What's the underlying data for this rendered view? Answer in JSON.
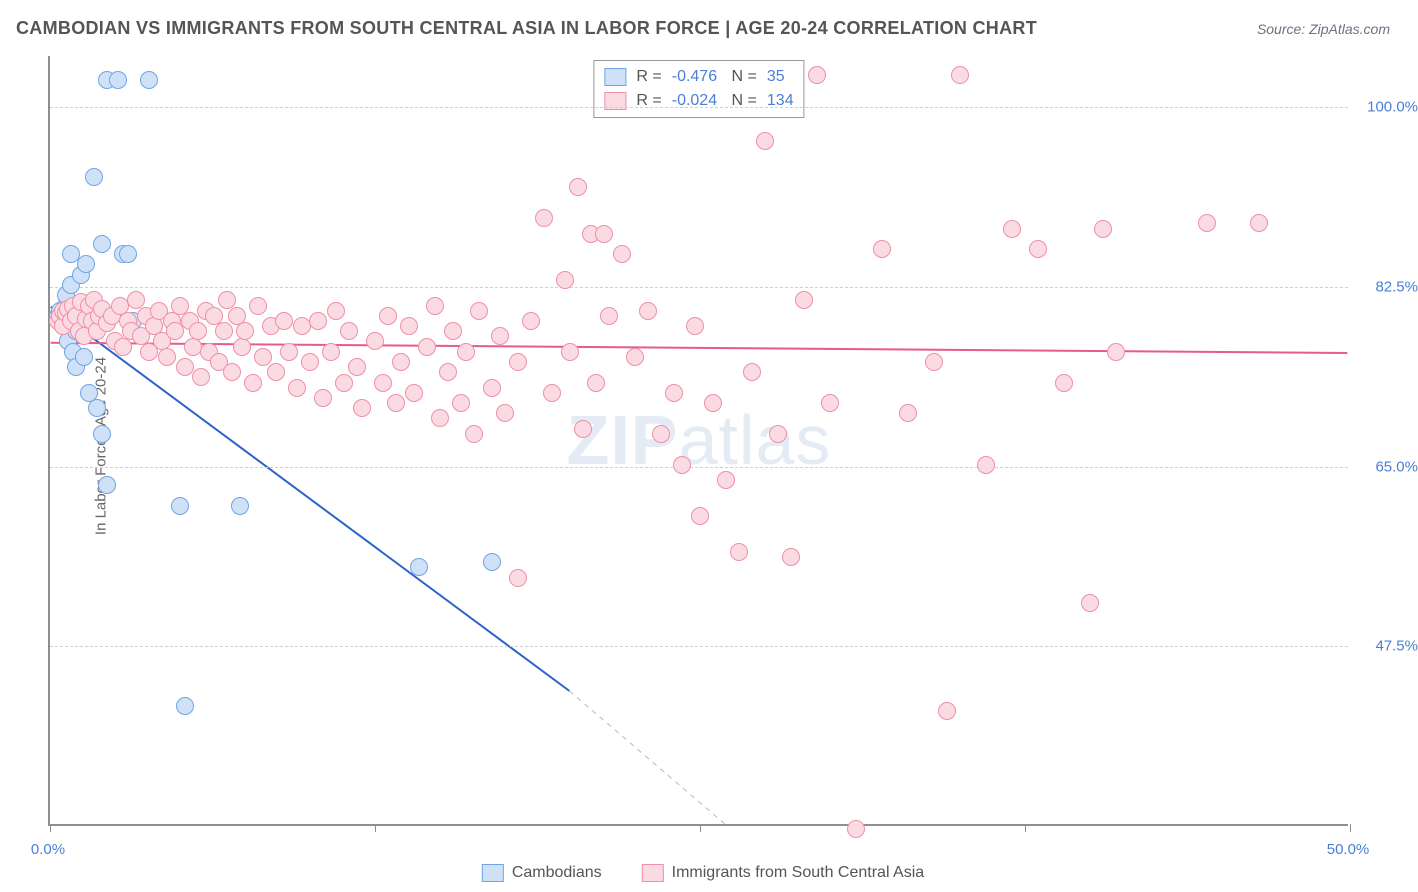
{
  "title": "CAMBODIAN VS IMMIGRANTS FROM SOUTH CENTRAL ASIA IN LABOR FORCE | AGE 20-24 CORRELATION CHART",
  "source_label": "Source: ZipAtlas.com",
  "y_axis_label": "In Labor Force | Age 20-24",
  "watermark_a": "ZIP",
  "watermark_b": "atlas",
  "chart": {
    "type": "scatter",
    "background_color": "#ffffff",
    "grid_color": "#d0d0d0",
    "axis_color": "#8f8f8f",
    "tick_label_color": "#4a7fd6",
    "xlim": [
      0,
      50
    ],
    "ylim": [
      30,
      105
    ],
    "x_ticks": [
      0,
      12.5,
      25,
      37.5,
      50
    ],
    "x_tick_labels": [
      "0.0%",
      "",
      "",
      "",
      "50.0%"
    ],
    "y_grid": [
      47.5,
      65.0,
      82.5,
      100.0
    ],
    "y_tick_labels": [
      "47.5%",
      "65.0%",
      "82.5%",
      "100.0%"
    ],
    "marker_radius": 9,
    "marker_stroke_width": 1.5,
    "series": [
      {
        "name": "Cambodians",
        "fill": "#cfe1f7",
        "stroke": "#6fa5e6",
        "r_value": "-0.476",
        "n_value": "35",
        "trend": {
          "x1": 0,
          "y1": 80.5,
          "x2_solid": 20,
          "y2_solid": 43,
          "x2": 26,
          "y2": 30,
          "color": "#2b63c9",
          "width": 2
        },
        "points": [
          [
            0.3,
            79.5
          ],
          [
            0.4,
            80
          ],
          [
            0.5,
            79
          ],
          [
            0.5,
            78.5
          ],
          [
            0.6,
            80.5
          ],
          [
            0.6,
            81.5
          ],
          [
            0.7,
            77
          ],
          [
            0.8,
            82.5
          ],
          [
            0.8,
            85.5
          ],
          [
            0.9,
            76
          ],
          [
            1.0,
            74.5
          ],
          [
            1.0,
            78
          ],
          [
            1.2,
            83.5
          ],
          [
            1.2,
            80
          ],
          [
            1.3,
            75.5
          ],
          [
            1.4,
            84.5
          ],
          [
            1.5,
            72
          ],
          [
            1.6,
            80
          ],
          [
            1.7,
            93
          ],
          [
            1.8,
            70.5
          ],
          [
            2.0,
            68
          ],
          [
            2.0,
            86.5
          ],
          [
            2.2,
            63
          ],
          [
            2.2,
            102.5
          ],
          [
            2.6,
            102.5
          ],
          [
            2.8,
            85.5
          ],
          [
            3.0,
            85.5
          ],
          [
            3.2,
            79
          ],
          [
            3.8,
            102.5
          ],
          [
            4.0,
            78.5
          ],
          [
            5.0,
            61
          ],
          [
            5.2,
            41.5
          ],
          [
            7.3,
            61
          ],
          [
            14.2,
            55
          ],
          [
            17.0,
            55.5
          ]
        ]
      },
      {
        "name": "Immigrants from South Central Asia",
        "fill": "#fbdbe3",
        "stroke": "#ef8fa8",
        "r_value": "-0.024",
        "n_value": "134",
        "trend": {
          "x1": 0,
          "y1": 77.0,
          "x2_solid": 50,
          "y2_solid": 76.0,
          "x2": 50,
          "y2": 76.0,
          "color": "#e65a8c",
          "width": 2
        },
        "points": [
          [
            0.3,
            79
          ],
          [
            0.4,
            79.5
          ],
          [
            0.5,
            80
          ],
          [
            0.5,
            78.5
          ],
          [
            0.6,
            79.8
          ],
          [
            0.7,
            80.2
          ],
          [
            0.8,
            79
          ],
          [
            0.9,
            80.5
          ],
          [
            1.0,
            79.5
          ],
          [
            1.1,
            78
          ],
          [
            1.2,
            80.8
          ],
          [
            1.3,
            77.5
          ],
          [
            1.4,
            79.2
          ],
          [
            1.5,
            80.5
          ],
          [
            1.6,
            79
          ],
          [
            1.7,
            81
          ],
          [
            1.8,
            78
          ],
          [
            1.9,
            79.5
          ],
          [
            2.0,
            80.2
          ],
          [
            2.2,
            78.8
          ],
          [
            2.4,
            79.5
          ],
          [
            2.5,
            77
          ],
          [
            2.7,
            80.5
          ],
          [
            2.8,
            76.5
          ],
          [
            3.0,
            79
          ],
          [
            3.1,
            78
          ],
          [
            3.3,
            81
          ],
          [
            3.5,
            77.5
          ],
          [
            3.7,
            79.5
          ],
          [
            3.8,
            76
          ],
          [
            4.0,
            78.5
          ],
          [
            4.2,
            80
          ],
          [
            4.3,
            77
          ],
          [
            4.5,
            75.5
          ],
          [
            4.7,
            79
          ],
          [
            4.8,
            78
          ],
          [
            5.0,
            80.5
          ],
          [
            5.2,
            74.5
          ],
          [
            5.4,
            79
          ],
          [
            5.5,
            76.5
          ],
          [
            5.7,
            78
          ],
          [
            5.8,
            73.5
          ],
          [
            6.0,
            80
          ],
          [
            6.1,
            76
          ],
          [
            6.3,
            79.5
          ],
          [
            6.5,
            75
          ],
          [
            6.7,
            78
          ],
          [
            6.8,
            81
          ],
          [
            7.0,
            74
          ],
          [
            7.2,
            79.5
          ],
          [
            7.4,
            76.5
          ],
          [
            7.5,
            78
          ],
          [
            7.8,
            73
          ],
          [
            8.0,
            80.5
          ],
          [
            8.2,
            75.5
          ],
          [
            8.5,
            78.5
          ],
          [
            8.7,
            74
          ],
          [
            9.0,
            79
          ],
          [
            9.2,
            76
          ],
          [
            9.5,
            72.5
          ],
          [
            9.7,
            78.5
          ],
          [
            10.0,
            75
          ],
          [
            10.3,
            79
          ],
          [
            10.5,
            71.5
          ],
          [
            10.8,
            76
          ],
          [
            11.0,
            80
          ],
          [
            11.3,
            73
          ],
          [
            11.5,
            78
          ],
          [
            11.8,
            74.5
          ],
          [
            12.0,
            70.5
          ],
          [
            12.5,
            77
          ],
          [
            12.8,
            73
          ],
          [
            13.0,
            79.5
          ],
          [
            13.3,
            71
          ],
          [
            13.5,
            75
          ],
          [
            13.8,
            78.5
          ],
          [
            14.0,
            72
          ],
          [
            14.5,
            76.5
          ],
          [
            14.8,
            80.5
          ],
          [
            15.0,
            69.5
          ],
          [
            15.3,
            74
          ],
          [
            15.5,
            78
          ],
          [
            15.8,
            71
          ],
          [
            16.0,
            76
          ],
          [
            16.3,
            68
          ],
          [
            16.5,
            80
          ],
          [
            17.0,
            72.5
          ],
          [
            17.3,
            77.5
          ],
          [
            17.5,
            70
          ],
          [
            18.0,
            54
          ],
          [
            18.0,
            75
          ],
          [
            18.5,
            79
          ],
          [
            19.0,
            89
          ],
          [
            19.3,
            72
          ],
          [
            19.8,
            83
          ],
          [
            20.0,
            76
          ],
          [
            20.3,
            92
          ],
          [
            20.5,
            68.5
          ],
          [
            20.8,
            87.5
          ],
          [
            21.0,
            73
          ],
          [
            21.3,
            87.5
          ],
          [
            21.5,
            79.5
          ],
          [
            22.0,
            85.5
          ],
          [
            22.5,
            75.5
          ],
          [
            23.0,
            80
          ],
          [
            23.5,
            68
          ],
          [
            24.0,
            72
          ],
          [
            24.3,
            65
          ],
          [
            24.8,
            78.5
          ],
          [
            25.0,
            60
          ],
          [
            25.5,
            71
          ],
          [
            26.0,
            63.5
          ],
          [
            26.5,
            56.5
          ],
          [
            27.0,
            74
          ],
          [
            27.5,
            96.5
          ],
          [
            28.0,
            68
          ],
          [
            28.5,
            56
          ],
          [
            29.0,
            81
          ],
          [
            29.5,
            103
          ],
          [
            30.0,
            71
          ],
          [
            31.0,
            29.5
          ],
          [
            32.0,
            86
          ],
          [
            33.0,
            70
          ],
          [
            34.0,
            75
          ],
          [
            34.5,
            41
          ],
          [
            35.0,
            103
          ],
          [
            36.0,
            65
          ],
          [
            37.0,
            88
          ],
          [
            38.0,
            86
          ],
          [
            39.0,
            73
          ],
          [
            40.0,
            51.5
          ],
          [
            40.5,
            88
          ],
          [
            41.0,
            76
          ],
          [
            44.5,
            88.5
          ],
          [
            46.5,
            88.5
          ]
        ]
      }
    ]
  },
  "legend_bottom": [
    {
      "label": "Cambodians",
      "fill": "#cfe1f7",
      "stroke": "#6fa5e6"
    },
    {
      "label": "Immigrants from South Central Asia",
      "fill": "#fbdbe3",
      "stroke": "#ef8fa8"
    }
  ]
}
